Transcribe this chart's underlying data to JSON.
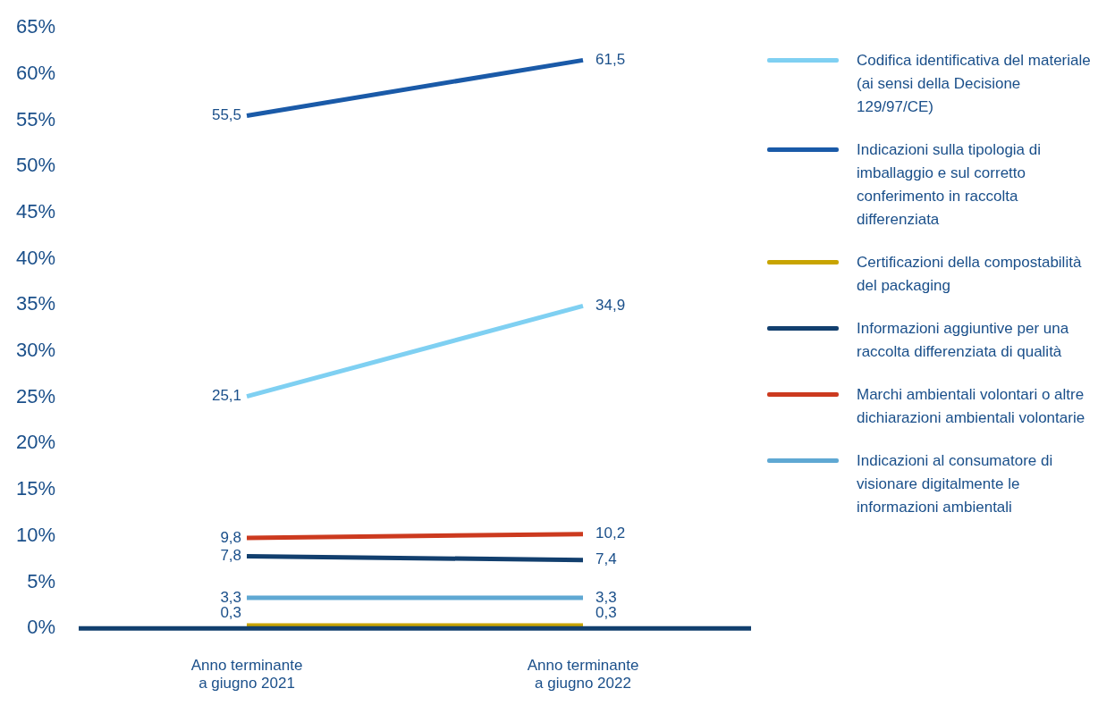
{
  "chart_data": {
    "type": "line",
    "categories": [
      "Anno terminante\na giugno 2021",
      "Anno terminante\na giugno 2022"
    ],
    "series": [
      {
        "name": "Codifica identificativa del materiale (ai sensi della Decisione 129/97/CE)",
        "color": "#7fd0f2",
        "values": [
          25.1,
          34.9
        ],
        "value_labels": [
          "25,1",
          "34,9"
        ]
      },
      {
        "name": "Indicazioni sulla tipologia di imballaggio e sul corretto conferimento in raccolta differenziata",
        "color": "#1a5aa8",
        "values": [
          55.5,
          61.5
        ],
        "value_labels": [
          "55,5",
          "61,5"
        ]
      },
      {
        "name": "Certificazioni della compostabilità del packaging",
        "color": "#c8a400",
        "values": [
          0.3,
          0.3
        ],
        "value_labels": [
          "0,3",
          "0,3"
        ]
      },
      {
        "name": "Informazioni aggiuntive per una raccolta differenziata di qualità",
        "color": "#123f6e",
        "values": [
          7.8,
          7.4
        ],
        "value_labels": [
          "7,8",
          "7,4"
        ]
      },
      {
        "name": "Marchi ambientali volontari o altre dichiarazioni ambientali volontarie",
        "color": "#cc3a1f",
        "values": [
          9.8,
          10.2
        ],
        "value_labels": [
          "9,8",
          "10,2"
        ]
      },
      {
        "name": "Indicazioni al consumatore di visionare digitalmente le informazioni ambientali",
        "color": "#5fa8d3",
        "values": [
          3.3,
          3.3
        ],
        "value_labels": [
          "3,3",
          "3,3"
        ]
      }
    ],
    "ylim": [
      0,
      65
    ],
    "yticks": [
      {
        "value": 0,
        "label": "0%"
      },
      {
        "value": 5,
        "label": "5%"
      },
      {
        "value": 10,
        "label": "10%"
      },
      {
        "value": 15,
        "label": "15%"
      },
      {
        "value": 20,
        "label": "20%"
      },
      {
        "value": 25,
        "label": "25%"
      },
      {
        "value": 30,
        "label": "30%"
      },
      {
        "value": 35,
        "label": "35%"
      },
      {
        "value": 40,
        "label": "40%"
      },
      {
        "value": 45,
        "label": "45%"
      },
      {
        "value": 50,
        "label": "50%"
      },
      {
        "value": 55,
        "label": "55%"
      },
      {
        "value": 60,
        "label": "60%"
      },
      {
        "value": 65,
        "label": "65%"
      }
    ],
    "grid": false,
    "legend": "right",
    "marker": "none",
    "line_style": "solid"
  }
}
